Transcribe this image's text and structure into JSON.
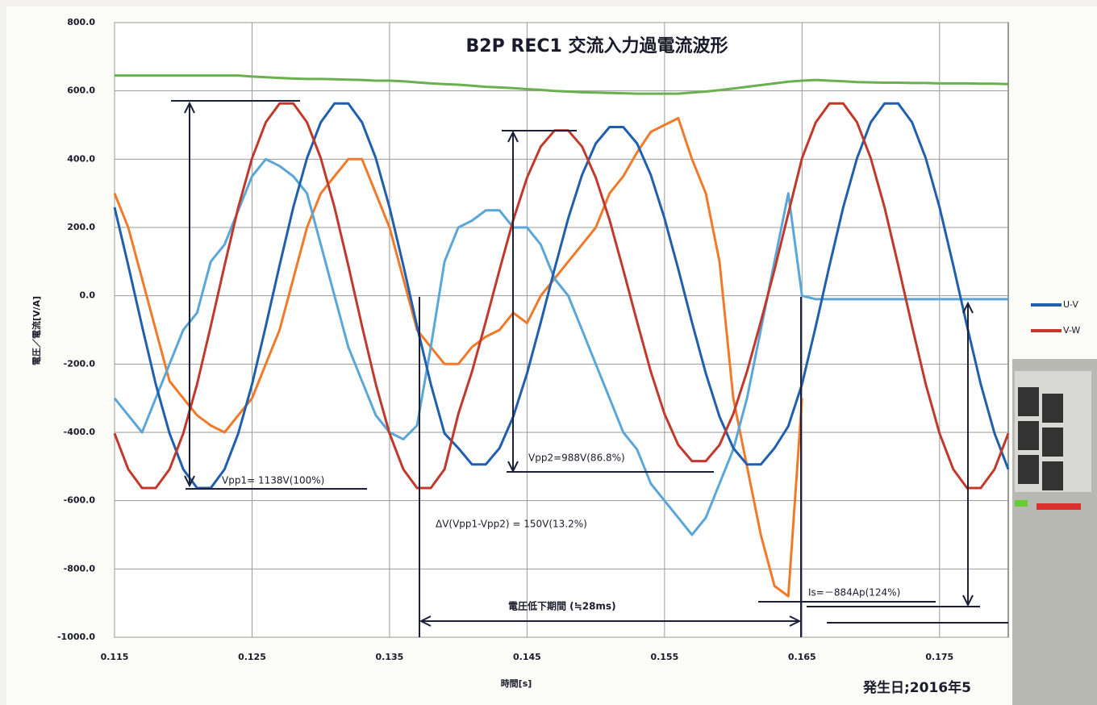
{
  "chart_data": {
    "type": "line",
    "title": "B2P REC1 交流入力過電流波形",
    "y_label": "電圧／電流[V/A]",
    "x_label": "時間[s]",
    "annotations": [
      "Vpp1= 1138V(100%)",
      "Vpp2=988V(86.8%)",
      "ΔV(Vpp1-Vpp2) = 150V(13.2%)",
      "電圧低下期間 (≒28ms)",
      "Is=－884Ap(124%)",
      "発生日;2016年5"
    ],
    "xlim": [
      0.115,
      0.18
    ],
    "xticks": [
      0.115,
      0.125,
      0.135,
      0.145,
      0.155,
      0.165,
      0.175
    ],
    "ylim": [
      -1000,
      800
    ],
    "yticks": [
      {
        "value": -1000,
        "label": "-1000.0"
      },
      {
        "value": -800,
        "label": "-800.0"
      },
      {
        "value": -600,
        "label": "-600.0"
      },
      {
        "value": -400,
        "label": "-400.0"
      },
      {
        "value": -200,
        "label": "-200.0"
      },
      {
        "value": 0,
        "label": "0.0"
      },
      {
        "value": 200,
        "label": "200.0"
      },
      {
        "value": 400,
        "label": "400.0"
      },
      {
        "value": 600,
        "label": "600.0"
      },
      {
        "value": 800,
        "label": "800.0"
      }
    ],
    "grid": true,
    "x": [
      0.115,
      0.116,
      0.117,
      0.118,
      0.119,
      0.12,
      0.121,
      0.122,
      0.123,
      0.124,
      0.125,
      0.126,
      0.127,
      0.128,
      0.129,
      0.13,
      0.131,
      0.132,
      0.133,
      0.134,
      0.135,
      0.136,
      0.137,
      0.138,
      0.139,
      0.14,
      0.141,
      0.142,
      0.143,
      0.144,
      0.145,
      0.146,
      0.147,
      0.148,
      0.149,
      0.15,
      0.151,
      0.152,
      0.153,
      0.154,
      0.155,
      0.156,
      0.157,
      0.158,
      0.159,
      0.16,
      0.161,
      0.162,
      0.163,
      0.164,
      0.165,
      0.166,
      0.167,
      0.168,
      0.169,
      0.17,
      0.171,
      0.172,
      0.173,
      0.174,
      0.175,
      0.176,
      0.177,
      0.178,
      0.179,
      0.18
    ],
    "series": [
      {
        "color": "#f07a2a",
        "values": [
          300,
          200,
          50,
          -100,
          -250,
          -300,
          -350,
          -380,
          -400,
          -350,
          -300,
          -200,
          -100,
          50,
          200,
          300,
          350,
          400,
          400,
          300,
          200,
          50,
          -100,
          -150,
          -200,
          -200,
          -150,
          -120,
          -100,
          -50,
          -80,
          0,
          50,
          100,
          150,
          200,
          300,
          350,
          420,
          480,
          500,
          520,
          400,
          300,
          100,
          -300,
          -500,
          -700,
          -850,
          -880,
          -300,
          null,
          null,
          null,
          null,
          null,
          null,
          null,
          null,
          null,
          null,
          null,
          null,
          null,
          null,
          null
        ]
      },
      {
        "color": "#5aa6d8",
        "values": [
          -300,
          -350,
          -400,
          -300,
          -200,
          -100,
          -50,
          100,
          150,
          250,
          350,
          400,
          380,
          350,
          300,
          150,
          0,
          -150,
          -250,
          -350,
          -400,
          -420,
          -380,
          -150,
          100,
          200,
          220,
          250,
          250,
          200,
          200,
          150,
          50,
          0,
          -100,
          -200,
          -300,
          -400,
          -450,
          -550,
          -600,
          -650,
          -700,
          -650,
          -550,
          -450,
          -300,
          -100,
          100,
          300,
          0,
          -10,
          -10,
          -10,
          -10,
          -10,
          -10,
          -10,
          -10,
          -10,
          -10,
          -10,
          -10,
          -10,
          -10,
          -10
        ]
      },
      {
        "name": "U-V",
        "color": "#1f5fae",
        "values": [
          259,
          89,
          -89,
          -259,
          -403,
          -508,
          -563,
          -563,
          -508,
          -403,
          -259,
          -89,
          89,
          259,
          403,
          508,
          563,
          563,
          508,
          403,
          259,
          89,
          -89,
          -259,
          -403,
          -446,
          -494,
          -494,
          -446,
          -354,
          -227,
          -78,
          78,
          227,
          354,
          446,
          494,
          494,
          446,
          354,
          227,
          78,
          -78,
          -227,
          -354,
          -446,
          -494,
          -494,
          -446,
          -382,
          -259,
          -89,
          89,
          259,
          403,
          508,
          563,
          563,
          508,
          403,
          259,
          89,
          -89,
          -259,
          -403,
          -508
        ]
      },
      {
        "name": "V-W",
        "color": "#c0392b",
        "values": [
          -403,
          -508,
          -563,
          -563,
          -508,
          -403,
          -259,
          -89,
          89,
          259,
          403,
          508,
          563,
          563,
          508,
          403,
          259,
          89,
          -89,
          -259,
          -403,
          -508,
          -563,
          -563,
          -508,
          -346,
          -222,
          -76,
          76,
          222,
          346,
          437,
          484,
          484,
          437,
          346,
          222,
          76,
          -76,
          -222,
          -346,
          -437,
          -484,
          -484,
          -437,
          -346,
          -222,
          -76,
          76,
          241,
          403,
          508,
          563,
          563,
          508,
          403,
          259,
          89,
          -89,
          -259,
          -403,
          -508,
          -563,
          -563,
          -508,
          -403
        ]
      },
      {
        "color": "#6ab04c",
        "values": [
          645,
          645,
          645,
          645,
          645,
          645,
          645,
          645,
          645,
          645,
          642,
          640,
          638,
          636,
          635,
          635,
          634,
          633,
          632,
          630,
          630,
          628,
          625,
          622,
          620,
          618,
          615,
          612,
          610,
          608,
          605,
          603,
          600,
          598,
          596,
          595,
          594,
          593,
          592,
          592,
          592,
          592,
          595,
          598,
          602,
          607,
          612,
          617,
          622,
          627,
          630,
          632,
          630,
          628,
          626,
          625,
          624,
          624,
          623,
          623,
          622,
          622,
          622,
          621,
          621,
          620
        ]
      }
    ]
  }
}
